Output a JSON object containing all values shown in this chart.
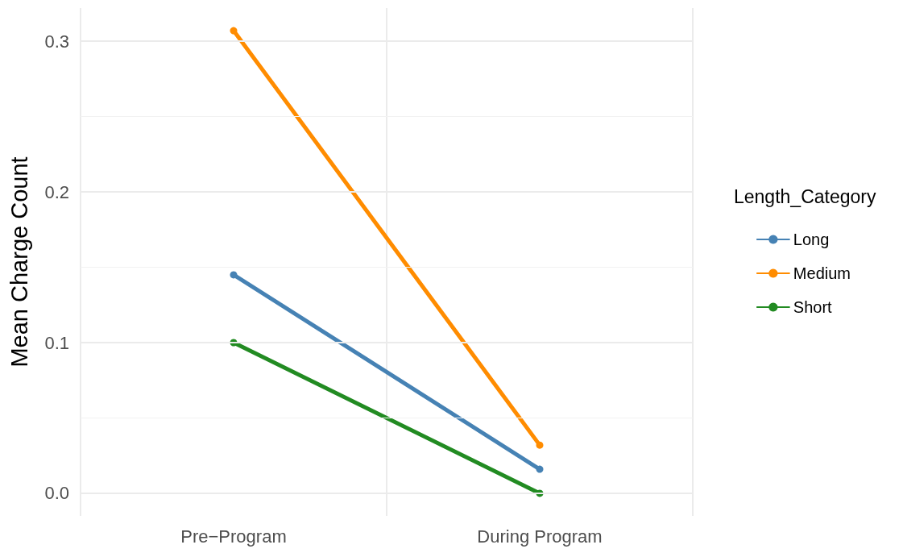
{
  "chart_data": {
    "type": "line",
    "ylabel": "Mean Charge Count",
    "legend_title": "Length_Category",
    "categories": [
      "Pre−Program",
      "During Program"
    ],
    "series": [
      {
        "name": "Long",
        "color": "#4682b4",
        "values": [
          0.145,
          0.016
        ]
      },
      {
        "name": "Medium",
        "color": "#ff8c00",
        "values": [
          0.307,
          0.032
        ]
      },
      {
        "name": "Short",
        "color": "#228b22",
        "values": [
          0.1,
          0.0
        ]
      }
    ],
    "ylim": [
      -0.015,
      0.322
    ],
    "yticks": [
      {
        "value": 0,
        "label": "0.0"
      },
      {
        "value": 0.05,
        "label": null
      },
      {
        "value": 0.1,
        "label": "0.1"
      },
      {
        "value": 0.15,
        "label": null
      },
      {
        "value": 0.2,
        "label": "0.2"
      },
      {
        "value": 0.25,
        "label": null
      },
      {
        "value": 0.3,
        "label": "0.3"
      }
    ],
    "grid": true,
    "legend": "right",
    "marker": "circle",
    "line_style": "solid"
  }
}
